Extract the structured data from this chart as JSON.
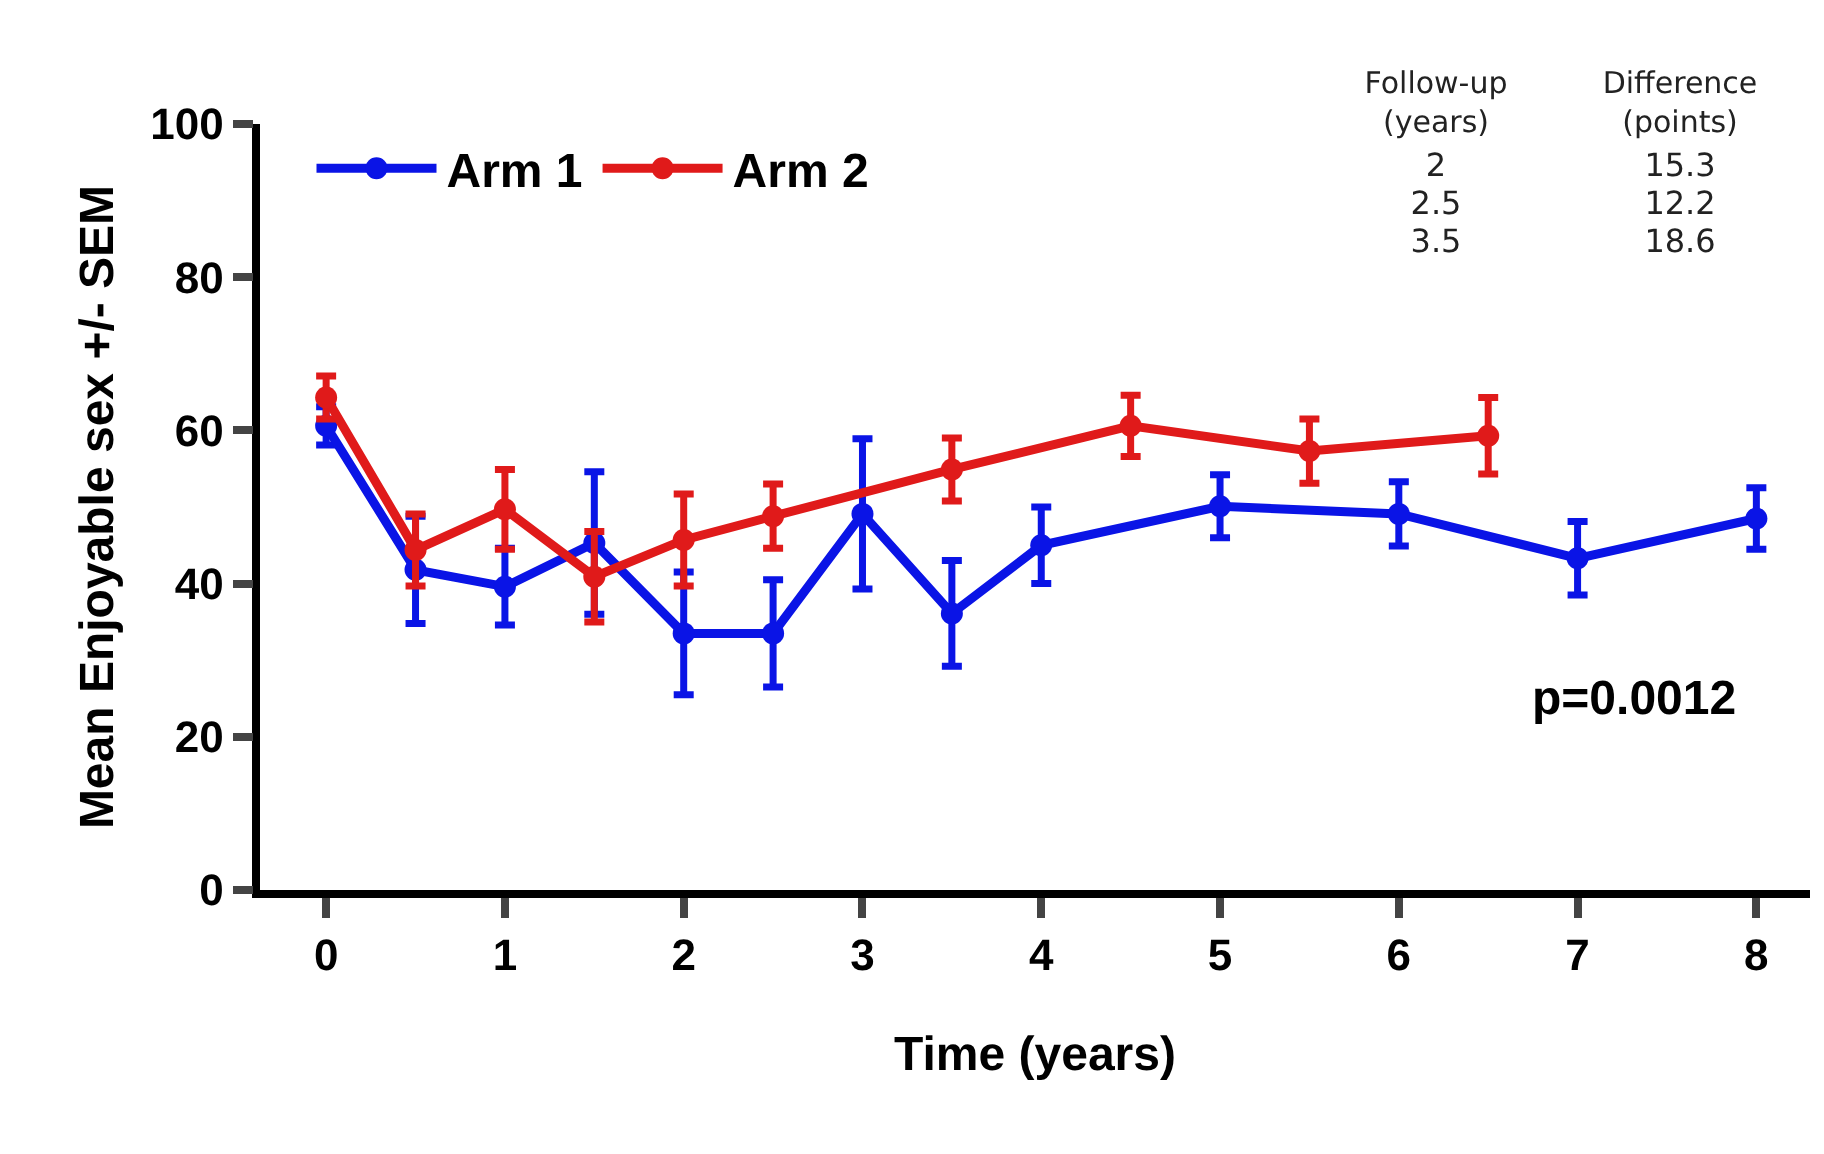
{
  "chart_data": {
    "type": "line",
    "xlabel": "Time (years)",
    "ylabel": "Mean Enjoyable sex +/- SEM",
    "xlim": [
      -0.37,
      8.3
    ],
    "xticks": [
      0,
      1,
      2,
      3,
      4,
      5,
      6,
      7,
      8
    ],
    "ylim": [
      0,
      100
    ],
    "yticks": [
      0,
      20,
      40,
      60,
      80,
      100
    ],
    "legend": "top left",
    "marker": "circle",
    "line_style": "solid",
    "series": [
      {
        "name": "Arm 1",
        "color": "#0a14e6",
        "x": [
          0,
          0.5,
          1,
          1.5,
          2,
          2.5,
          3,
          3.5,
          4,
          5,
          6,
          7,
          8
        ],
        "values": [
          60.6,
          41.8,
          39.6,
          45.3,
          33.5,
          33.5,
          49.1,
          36.1,
          45.0,
          50.1,
          49.1,
          43.3,
          48.5
        ],
        "errors": [
          2.5,
          7,
          5,
          9.3,
          8,
          7,
          9.8,
          6.9,
          5,
          4.1,
          4.2,
          4.8,
          4
        ]
      },
      {
        "name": "Arm 2",
        "color": "#e01a1a",
        "x": [
          0,
          0.5,
          1,
          1.5,
          2,
          2.5,
          3.5,
          4.5,
          5.5,
          6.5
        ],
        "values": [
          64.3,
          44.4,
          49.7,
          40.9,
          45.7,
          48.8,
          54.9,
          60.6,
          57.3,
          59.3
        ],
        "errors": [
          2.8,
          4.7,
          5.2,
          5.9,
          6,
          4.2,
          4.1,
          4,
          4.2,
          5
        ]
      }
    ],
    "annotations": [
      "Follow-up\n(years)",
      "Difference\n(points)",
      "2",
      "15.3",
      "2.5",
      "12.2",
      "3.5",
      "18.6",
      "p=0.0012"
    ]
  }
}
